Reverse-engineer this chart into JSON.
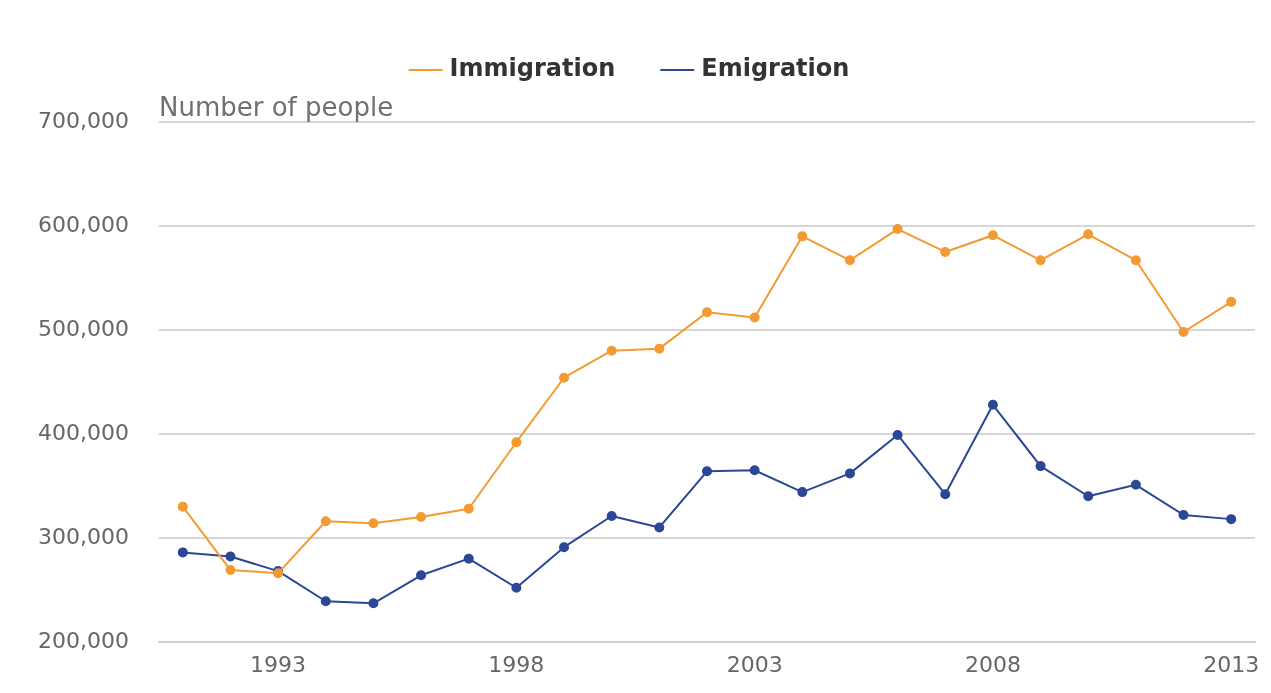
{
  "chart_data": {
    "type": "line",
    "ylabel": "Number of people",
    "x": [
      1991,
      1992,
      1993,
      1994,
      1995,
      1996,
      1997,
      1998,
      1999,
      2000,
      2001,
      2002,
      2003,
      2004,
      2005,
      2006,
      2007,
      2008,
      2009,
      2010,
      2011,
      2012,
      2013
    ],
    "series": [
      {
        "name": "Emigration",
        "color": "#2b4896",
        "values": [
          286000,
          282000,
          268000,
          239000,
          237000,
          264000,
          280000,
          252000,
          291000,
          321000,
          310000,
          364000,
          365000,
          344000,
          362000,
          399000,
          342000,
          428000,
          369000,
          340000,
          351000,
          322000,
          318000
        ]
      },
      {
        "name": "Immigration",
        "color": "#f39a33",
        "values": [
          330000,
          269000,
          266000,
          316000,
          314000,
          320000,
          328000,
          392000,
          454000,
          480000,
          482000,
          517000,
          512000,
          590000,
          567000,
          597000,
          575000,
          591000,
          567000,
          592000,
          567000,
          498000,
          527000
        ]
      }
    ],
    "xlim": [
      1990.5,
      2013.5
    ],
    "xticks": [
      1993,
      1998,
      2003,
      2008,
      2013
    ],
    "ylim": [
      200000,
      700000
    ],
    "yticks": [
      {
        "value": 200000,
        "label": "200,000"
      },
      {
        "value": 300000,
        "label": "300,000"
      },
      {
        "value": 400000,
        "label": "400,000"
      },
      {
        "value": 500000,
        "label": "500,000"
      },
      {
        "value": 600000,
        "label": "600,000"
      },
      {
        "value": 700000,
        "label": "700,000"
      }
    ],
    "grid": "y",
    "legend": "top",
    "marker": "circle",
    "line_style": "solid"
  }
}
